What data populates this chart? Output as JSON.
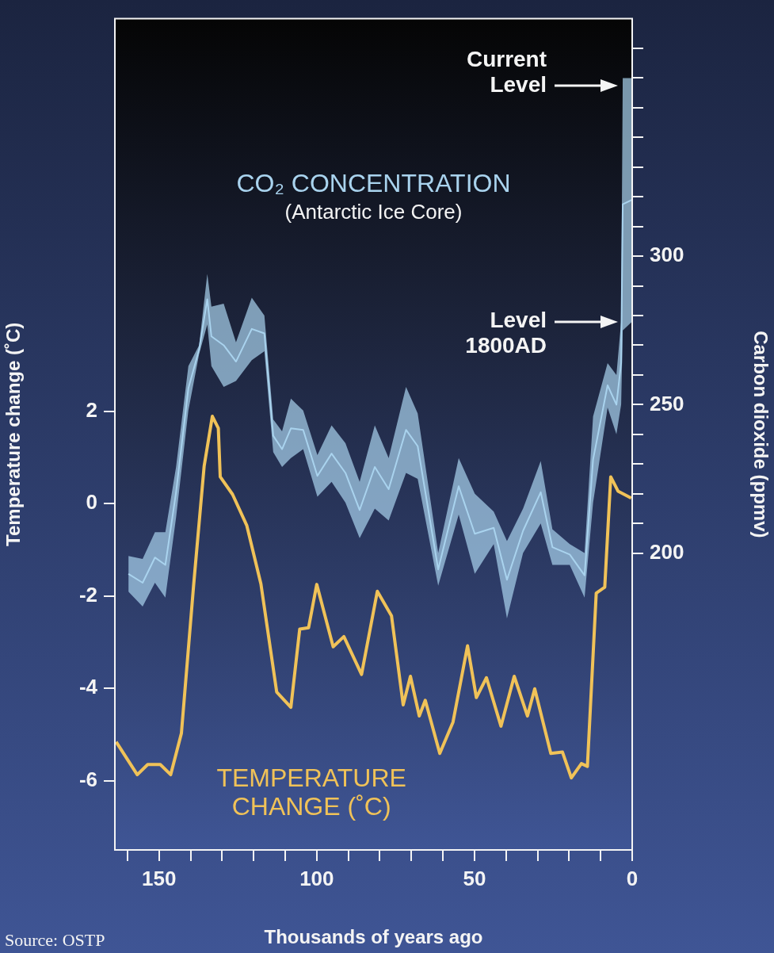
{
  "chart_data": {
    "type": "line",
    "xlabel": "Thousands of years ago",
    "ylabel": "Temperature change (˚C)",
    "y2label": "Carbon dioxide (ppmv)",
    "xlim": [
      164,
      0
    ],
    "xticks": [
      {
        "value": 160,
        "label": null
      },
      150,
      {
        "value": 140,
        "label": null
      },
      {
        "value": 130,
        "label": null
      },
      {
        "value": 120,
        "label": null
      },
      {
        "value": 110,
        "label": null
      },
      100,
      {
        "value": 90,
        "label": null
      },
      {
        "value": 80,
        "label": null
      },
      {
        "value": 70,
        "label": null
      },
      {
        "value": 60,
        "label": null
      },
      50,
      {
        "value": 40,
        "label": null
      },
      {
        "value": 30,
        "label": null
      },
      {
        "value": 20,
        "label": null
      },
      {
        "value": 10,
        "label": null
      },
      0
    ],
    "ylim": [
      -7.5,
      10.5
    ],
    "yticks": [
      -6,
      -4,
      -2,
      0,
      2
    ],
    "y2lim": [
      100,
      380
    ],
    "y2ticks": [
      200,
      {
        "value": 210,
        "label": null
      },
      {
        "value": 220,
        "label": null
      },
      {
        "value": 230,
        "label": null
      },
      {
        "value": 240,
        "label": null
      },
      250,
      {
        "value": 260,
        "label": null
      },
      {
        "value": 270,
        "label": null
      },
      {
        "value": 280,
        "label": null
      },
      {
        "value": 290,
        "label": null
      },
      300,
      {
        "value": 310,
        "label": null
      },
      {
        "value": 320,
        "label": null
      },
      {
        "value": 330,
        "label": null
      },
      {
        "value": 340,
        "label": null
      },
      {
        "value": 350,
        "label": null
      },
      {
        "value": 360,
        "label": null
      },
      {
        "value": 370,
        "label": null
      }
    ],
    "series": [
      {
        "name": "CO₂ CONCENTRATION",
        "axis": "y2",
        "color": "#a9d3ee",
        "x": [
          159.7,
          155.2,
          151.3,
          148,
          144.6,
          140.7,
          137.3,
          134.7,
          133.4,
          129.5,
          125.6,
          120.6,
          116.6,
          113.8,
          111,
          108.2,
          104.3,
          99.8,
          95.3,
          90.9,
          86.4,
          81.6,
          77.2,
          71.7,
          68,
          61.5,
          55,
          49.9,
          43.9,
          39.7,
          34.6,
          29,
          25.3,
          19.8,
          15.1,
          12.4,
          7.8,
          5,
          3.5,
          3,
          0
        ],
        "values": [
          193,
          190,
          198.5,
          196,
          220.5,
          255.5,
          268.5,
          285.5,
          273,
          270,
          264.5,
          275.5,
          274,
          239.5,
          235,
          242,
          241.5,
          226,
          233.5,
          227,
          214.5,
          229,
          221.5,
          241.5,
          236,
          194.5,
          222.5,
          206.5,
          208.5,
          191,
          207.5,
          220.5,
          202,
          199.5,
          192.5,
          231.5,
          256.5,
          250,
          264,
          317.5,
          319
        ],
        "lower": [
          187,
          182,
          190,
          185,
          212,
          248,
          267,
          277,
          263,
          256,
          258,
          265,
          268,
          234,
          229,
          232,
          235,
          219,
          224,
          217,
          205,
          215,
          211,
          227,
          225,
          189,
          213,
          193,
          203,
          178,
          200,
          210,
          196,
          196,
          185,
          217,
          249,
          240,
          250,
          275,
          278
        ],
        "upper": [
          199,
          198,
          207,
          207,
          229,
          263,
          270,
          294,
          283,
          284,
          271,
          286,
          280,
          245,
          241,
          252,
          248,
          233,
          243,
          237,
          224,
          243,
          232,
          256,
          247,
          200,
          232,
          220,
          214,
          204,
          215,
          231,
          208,
          203,
          200,
          246,
          264,
          260,
          278,
          360,
          360
        ]
      },
      {
        "name": "TEMPERATURE CHANGE (˚C)",
        "color": "#f0c258",
        "x": [
          163.6,
          156.9,
          153.6,
          149.6,
          146.3,
          142.9,
          139,
          135.7,
          133.1,
          131.2,
          130.6,
          126.7,
          122.2,
          117.7,
          112.7,
          108.2,
          105.4,
          102.6,
          100,
          94.8,
          91.4,
          85.8,
          80.8,
          76.3,
          72.6,
          70.3,
          67.5,
          65.6,
          61,
          56.8,
          52.2,
          49.4,
          46.2,
          41.6,
          37.4,
          33.2,
          30.9,
          25.8,
          22.1,
          19.3,
          16.1,
          14.2,
          11.4,
          8.7,
          6.8,
          4.5,
          0.3
        ],
        "values": [
          -5.16,
          -5.87,
          -5.65,
          -5.65,
          -5.87,
          -4.97,
          -1.74,
          0.81,
          1.89,
          1.63,
          0.58,
          0.2,
          -0.47,
          -1.74,
          -4.08,
          -4.41,
          -2.72,
          -2.69,
          -1.75,
          -3.1,
          -2.88,
          -3.7,
          -1.9,
          -2.43,
          -4.36,
          -3.74,
          -4.6,
          -4.26,
          -5.41,
          -4.73,
          -3.08,
          -4.2,
          -3.77,
          -4.82,
          -3.74,
          -4.6,
          -4.01,
          -5.41,
          -5.38,
          -5.94,
          -5.63,
          -5.69,
          -1.94,
          -1.81,
          0.58,
          0.27,
          0.12
        ]
      }
    ],
    "annotations": [
      "Current Level",
      "Level 1800AD",
      "(Antarctic Ice Core)",
      "Source: OSTP"
    ]
  }
}
